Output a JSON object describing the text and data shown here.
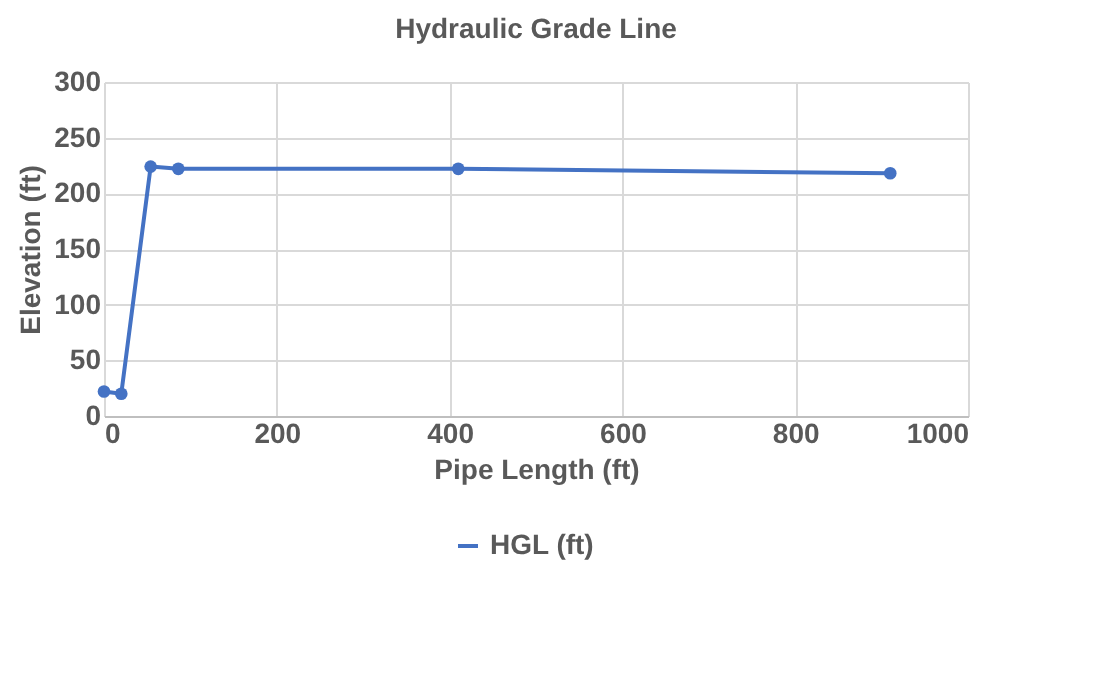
{
  "chart_data": {
    "type": "line",
    "title": "Hydraulic Grade Line",
    "xlabel": "Pipe Length (ft)",
    "ylabel": "Elevation (ft)",
    "x": [
      0,
      20,
      54,
      86,
      410,
      910
    ],
    "series": [
      {
        "name": "HGL (ft)",
        "color": "#4472c4",
        "values": [
          22,
          20,
          224,
          222,
          222,
          218
        ]
      }
    ],
    "xlim": [
      0,
      1000
    ],
    "xticks": [
      0,
      200,
      400,
      600,
      800,
      1000
    ],
    "ylim": [
      0,
      300
    ],
    "yticks": [
      0,
      50,
      100,
      150,
      200,
      250,
      300
    ],
    "grid": true,
    "legend": "bottom",
    "marker": "circle"
  }
}
